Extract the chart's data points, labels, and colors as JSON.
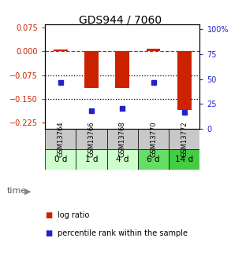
{
  "title": "GDS944 / 7060",
  "samples": [
    "GSM13764",
    "GSM13766",
    "GSM13768",
    "GSM13770",
    "GSM13772"
  ],
  "time_labels": [
    "0 d",
    "1 d",
    "4 d",
    "6 d",
    "14 d"
  ],
  "log_ratio": [
    0.005,
    -0.115,
    -0.115,
    0.008,
    -0.185
  ],
  "percentile_rank": [
    47,
    18,
    21,
    47,
    17
  ],
  "ylim_left": [
    -0.245,
    0.085
  ],
  "ylim_right": [
    0,
    105
  ],
  "yticks_left": [
    0.075,
    0,
    -0.075,
    -0.15,
    -0.225
  ],
  "yticks_right": [
    100,
    75,
    50,
    25,
    0
  ],
  "hlines": [
    0,
    -0.075,
    -0.15
  ],
  "hline_styles": [
    "--",
    ":",
    ":"
  ],
  "hline_colors": [
    "#cc2200",
    "#000000",
    "#000000"
  ],
  "bar_color": "#cc2200",
  "dot_color": "#2222cc",
  "cell_bg_gray": "#c8c8c8",
  "time_colors": [
    "#ccffcc",
    "#ccffcc",
    "#ccffcc",
    "#66dd66",
    "#44cc44"
  ],
  "background_color": "#ffffff",
  "title_fontsize": 10,
  "tick_fontsize": 7,
  "gsm_fontsize": 6,
  "time_fontsize": 7.5,
  "legend_fontsize": 7
}
